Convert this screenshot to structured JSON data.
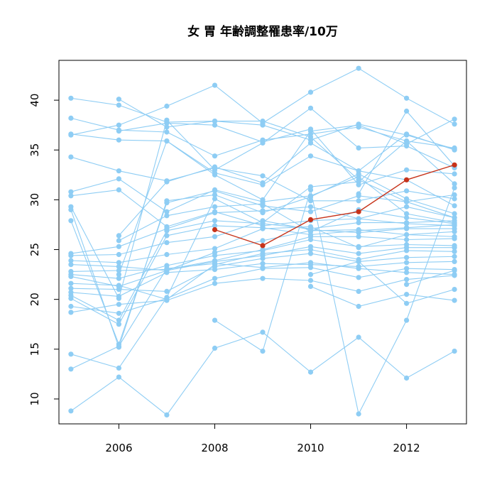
{
  "chart_data": {
    "type": "line",
    "title": "女 胃 年齢調整罹患率/10万",
    "xlabel": "",
    "ylabel": "",
    "xlim": [
      2004.75,
      2013.25
    ],
    "ylim": [
      7.5,
      44
    ],
    "x_ticks": [
      2006,
      2008,
      2010,
      2012
    ],
    "y_ticks": [
      10,
      15,
      20,
      25,
      30,
      35,
      40
    ],
    "grid": false,
    "legend": "none",
    "colors": {
      "background_series": "#8ecdf4",
      "highlight_series": "#c7331a"
    },
    "series": [
      {
        "x": [
          2005,
          2006,
          2007,
          2008,
          2009,
          2010,
          2011,
          2012,
          2013
        ],
        "y": [
          40.2,
          39.5,
          37.8,
          37.9,
          37.5,
          36.0,
          37.6,
          36.5,
          35.1
        ]
      },
      {
        "x": [
          2005,
          2006,
          2007,
          2008,
          2009,
          2010,
          2011,
          2012,
          2013
        ],
        "y": [
          38.2,
          37.0,
          36.8,
          34.4,
          36.0,
          36.6,
          37.3,
          35.9,
          35.2
        ]
      },
      {
        "x": [
          2005,
          2006,
          2007,
          2008,
          2009,
          2010,
          2011,
          2012,
          2013
        ],
        "y": [
          36.6,
          36.0,
          35.9,
          32.7,
          31.5,
          34.4,
          32.9,
          32.0,
          29.4
        ]
      },
      {
        "x": [
          2005,
          2006,
          2007,
          2008,
          2009,
          2010,
          2011,
          2012,
          2013
        ],
        "y": [
          36.5,
          37.5,
          39.4,
          41.5,
          37.7,
          40.8,
          43.2,
          40.2,
          37.6
        ]
      },
      {
        "x": [
          2005,
          2006,
          2007,
          2008,
          2009,
          2010,
          2011,
          2012,
          2013
        ],
        "y": [
          34.3,
          32.9,
          31.9,
          33.2,
          32.4,
          29.9,
          29.9,
          30.9,
          30.1
        ]
      },
      {
        "x": [
          2005,
          2006,
          2007,
          2008,
          2009,
          2010,
          2011,
          2012,
          2013
        ],
        "y": [
          30.8,
          32.1,
          28.8,
          31.0,
          29.8,
          30.4,
          32.3,
          28.6,
          27.7
        ]
      },
      {
        "x": [
          2005,
          2006,
          2007,
          2008,
          2009,
          2010,
          2011,
          2012,
          2013
        ],
        "y": [
          30.4,
          31.0,
          27.3,
          28.8,
          27.4,
          27.9,
          28.1,
          29.3,
          28.2
        ]
      },
      {
        "x": [
          2005,
          2006,
          2007,
          2008,
          2009,
          2010,
          2011,
          2012,
          2013
        ],
        "y": [
          29.3,
          20.1,
          38.0,
          33.0,
          35.7,
          39.2,
          35.2,
          35.4,
          33.2
        ]
      },
      {
        "x": [
          2005,
          2006,
          2007,
          2008,
          2009,
          2010,
          2011,
          2012,
          2013
        ],
        "y": [
          29.0,
          15.2,
          29.9,
          30.5,
          28.7,
          30.3,
          32.6,
          30.1,
          28.6
        ]
      },
      {
        "x": [
          2005,
          2006,
          2007,
          2008,
          2009,
          2010,
          2011,
          2012,
          2013
        ],
        "y": [
          27.9,
          15.5,
          29.7,
          30.9,
          29.4,
          28.8,
          30.4,
          29.8,
          28.2
        ]
      },
      {
        "x": [
          2005,
          2006,
          2007,
          2008,
          2009,
          2010,
          2011,
          2012,
          2013
        ],
        "y": [
          24.6,
          25.3,
          27.1,
          28.7,
          28.9,
          29.3,
          28.1,
          27.6,
          27.4
        ]
      },
      {
        "x": [
          2005,
          2006,
          2007,
          2008,
          2009,
          2010,
          2011,
          2012,
          2013
        ],
        "y": [
          24.4,
          24.5,
          25.7,
          26.3,
          27.9,
          27.0,
          26.7,
          27.1,
          27.1
        ]
      },
      {
        "x": [
          2005,
          2006,
          2007,
          2008,
          2009,
          2010,
          2011,
          2012,
          2013
        ],
        "y": [
          23.9,
          23.7,
          24.5,
          25.1,
          27.1,
          27.3,
          25.2,
          26.5,
          26.8
        ]
      },
      {
        "x": [
          2005,
          2006,
          2007,
          2008,
          2009,
          2010,
          2011,
          2012,
          2013
        ],
        "y": [
          23.5,
          23.3,
          22.9,
          24.7,
          25.9,
          26.9,
          27.0,
          26.5,
          26.3
        ]
      },
      {
        "x": [
          2005,
          2006,
          2007,
          2008,
          2009,
          2010,
          2011,
          2012,
          2013
        ],
        "y": [
          22.8,
          22.9,
          23.0,
          23.9,
          25.0,
          26.3,
          26.3,
          26.0,
          26.1
        ]
      },
      {
        "x": [
          2005,
          2006,
          2007,
          2008,
          2009,
          2010,
          2011,
          2012,
          2013
        ],
        "y": [
          22.5,
          22.1,
          23.4,
          24.4,
          24.9,
          26.0,
          25.3,
          25.5,
          25.4
        ]
      },
      {
        "x": [
          2005,
          2006,
          2007,
          2008,
          2009,
          2010,
          2011,
          2012,
          2013
        ],
        "y": [
          22.3,
          21.3,
          22.9,
          23.8,
          24.4,
          25.3,
          24.6,
          25.2,
          25.2
        ]
      },
      {
        "x": [
          2005,
          2006,
          2007,
          2008,
          2009,
          2010,
          2011,
          2012,
          2013
        ],
        "y": [
          21.6,
          21.4,
          20.0,
          23.5,
          24.6,
          25.0,
          24.0,
          24.9,
          24.8
        ]
      },
      {
        "x": [
          2005,
          2006,
          2007,
          2008,
          2009,
          2010,
          2011,
          2012,
          2013
        ],
        "y": [
          21.1,
          21.0,
          20.8,
          23.3,
          24.1,
          24.6,
          23.8,
          24.2,
          24.3
        ]
      },
      {
        "x": [
          2005,
          2006,
          2007,
          2008,
          2009,
          2010,
          2011,
          2012,
          2013
        ],
        "y": [
          20.7,
          20.3,
          22.7,
          23.0,
          23.6,
          23.5,
          23.3,
          23.7,
          23.8
        ]
      },
      {
        "x": [
          2005,
          2006,
          2007,
          2008,
          2009,
          2010,
          2011,
          2012,
          2013
        ],
        "y": [
          20.4,
          17.9,
          26.9,
          27.9,
          27.6,
          27.1,
          27.7,
          27.7,
          27.9
        ]
      },
      {
        "x": [
          2005,
          2006,
          2007,
          2008,
          2009,
          2010,
          2011,
          2012,
          2013
        ],
        "y": [
          20.1,
          17.5,
          26.4,
          27.4,
          27.2,
          26.5,
          26.9,
          27.2,
          27.5
        ]
      },
      {
        "x": [
          2005,
          2006,
          2007,
          2008,
          2009,
          2010,
          2011,
          2012,
          2013
        ],
        "y": [
          19.3,
          18.6,
          20.1,
          22.1,
          23.1,
          23.2,
          22.2,
          23.1,
          23.0
        ]
      },
      {
        "x": [
          2005,
          2006,
          2007,
          2008,
          2009,
          2010,
          2011,
          2012,
          2013
        ],
        "y": [
          18.7,
          19.5,
          19.9,
          21.6,
          22.1,
          21.9,
          20.8,
          22.0,
          22.4
        ]
      },
      {
        "x": [
          2005,
          2006,
          2007,
          2008,
          2009,
          2010,
          2011,
          2012,
          2013
        ],
        "y": [
          14.5,
          13.1,
          20.2,
          30.1,
          27.7,
          31.3,
          31.8,
          35.9,
          31.6
        ]
      },
      {
        "x": [
          2005,
          2006,
          2007,
          2008,
          2009,
          2010,
          2011,
          2012,
          2013
        ],
        "y": [
          13.0,
          15.3,
          23.1,
          23.6,
          23.2,
          23.7,
          23.1,
          22.7,
          22.5
        ]
      },
      {
        "x": [
          2005,
          2006,
          2007,
          2008,
          2009,
          2010,
          2011,
          2012,
          2013
        ],
        "y": [
          8.8,
          12.2,
          8.4,
          15.1,
          16.7,
          12.7,
          16.2,
          12.1,
          14.8
        ]
      },
      {
        "x": [
          2006,
          2007,
          2008,
          2009,
          2010,
          2011,
          2012,
          2013
        ],
        "y": [
          40.1,
          37.3,
          37.9,
          37.9,
          36.3,
          32.0,
          29.8,
          30.5
        ]
      },
      {
        "x": [
          2006,
          2007,
          2008,
          2009,
          2010,
          2011,
          2012,
          2013
        ],
        "y": [
          36.9,
          37.7,
          37.5,
          35.8,
          37.1,
          31.5,
          33.0,
          32.6
        ]
      },
      {
        "x": [
          2006,
          2007,
          2008,
          2009,
          2010,
          2011,
          2012,
          2013
        ],
        "y": [
          26.4,
          31.8,
          33.3,
          31.7,
          35.7,
          32.9,
          36.6,
          35.0
        ]
      },
      {
        "x": [
          2006,
          2007,
          2008,
          2009,
          2010,
          2011,
          2012,
          2013
        ],
        "y": [
          25.9,
          28.4,
          29.3,
          29.6,
          26.8,
          29.0,
          28.2,
          27.6
        ]
      },
      {
        "x": [
          2006,
          2007,
          2008,
          2009,
          2010,
          2011,
          2012,
          2013
        ],
        "y": [
          22.5,
          35.9,
          32.5,
          30.0,
          36.9,
          37.5,
          35.6,
          38.1
        ]
      },
      {
        "x": [
          2008,
          2009,
          2010,
          2011,
          2012,
          2013
        ],
        "y": [
          17.9,
          14.8,
          31.0,
          8.5,
          17.9,
          31.2
        ]
      },
      {
        "x": [
          2010,
          2011,
          2012,
          2013
        ],
        "y": [
          21.3,
          19.3,
          20.5,
          19.9
        ]
      },
      {
        "x": [
          2010,
          2011,
          2012,
          2013
        ],
        "y": [
          22.5,
          23.8,
          19.6,
          21.0
        ]
      },
      {
        "x": [
          2011,
          2012,
          2013
        ],
        "y": [
          30.6,
          38.9,
          33.4
        ]
      },
      {
        "x": [
          2012,
          2013
        ],
        "y": [
          21.5,
          22.9
        ]
      },
      {
        "x": [
          2008,
          2009,
          2010,
          2011,
          2012,
          2013
        ],
        "y": [
          27.0,
          25.4,
          28.0,
          28.8,
          32.0,
          33.5
        ],
        "highlight": true
      }
    ]
  }
}
